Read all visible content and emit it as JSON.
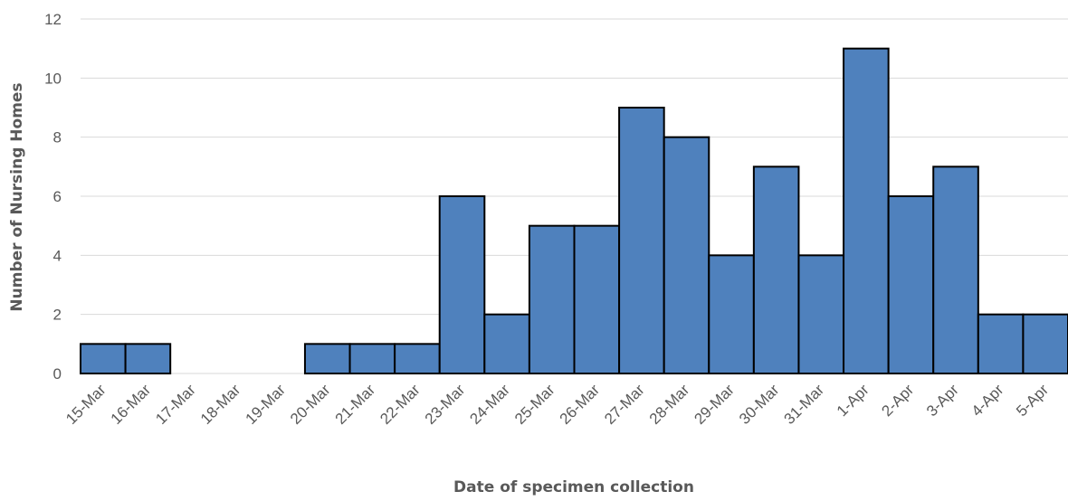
{
  "chart_data": {
    "type": "bar",
    "title": "",
    "xlabel": "Date of specimen collection",
    "ylabel": "Number of Nursing Homes",
    "categories": [
      "15-Mar",
      "16-Mar",
      "17-Mar",
      "18-Mar",
      "19-Mar",
      "20-Mar",
      "21-Mar",
      "22-Mar",
      "23-Mar",
      "24-Mar",
      "25-Mar",
      "26-Mar",
      "27-Mar",
      "28-Mar",
      "29-Mar",
      "30-Mar",
      "31-Mar",
      "1-Apr",
      "2-Apr",
      "3-Apr",
      "4-Apr",
      "5-Apr"
    ],
    "values": [
      1,
      1,
      0,
      0,
      0,
      1,
      1,
      1,
      6,
      2,
      5,
      5,
      9,
      8,
      4,
      7,
      4,
      11,
      6,
      7,
      2,
      2
    ],
    "ylim": [
      0,
      12
    ],
    "yticks": [
      0,
      2,
      4,
      6,
      8,
      10,
      12
    ],
    "grid": true,
    "legend": "none",
    "colors": {
      "bar_fill": "#4f81bd",
      "bar_edge": "#000000",
      "grid": "#d9d9d9",
      "text": "#595959"
    }
  }
}
